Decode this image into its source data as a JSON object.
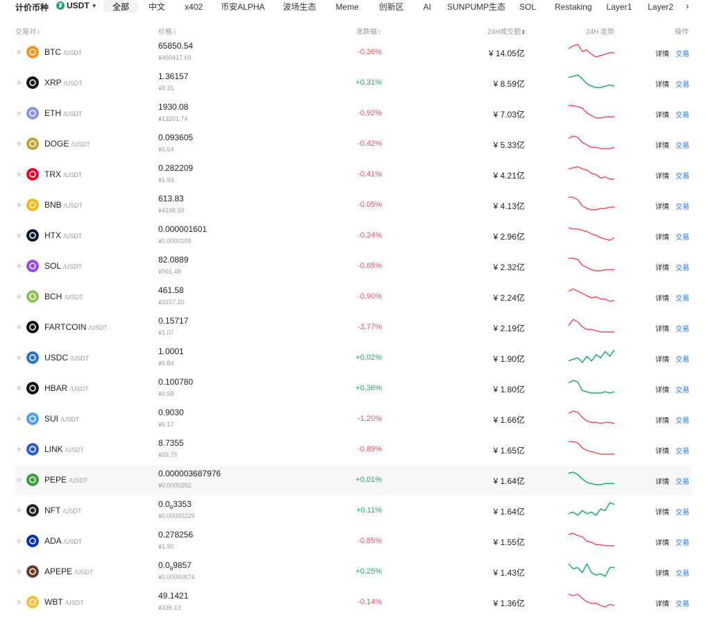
{
  "topbar": {
    "pricing_label": "计价币种",
    "currency": "USDT",
    "tabs": [
      "全部",
      "中文",
      "x402",
      "币安ALPHA",
      "波场生态",
      "Meme",
      "创新区",
      "AI",
      "SUNPUMP生态",
      "SOL",
      "Restaking",
      "Layer1",
      "Layer2"
    ],
    "active_tab": 0
  },
  "columns": {
    "pair": "交易对",
    "price": "价格",
    "change": "涨跌幅",
    "volume": "24H成交额",
    "trend": "24H 走势",
    "action": "操作"
  },
  "actions": {
    "detail": "详情",
    "trade": "交易"
  },
  "colors": {
    "up": "#1aaa6e",
    "down": "#ef5061",
    "link": "#2f74e8"
  },
  "rows": [
    {
      "symbol": "BTC",
      "quote": "/USDT",
      "price": "65850.54",
      "cny": "¥450417.69",
      "change": "-0.36%",
      "direction": "down",
      "volume": "¥ 14.05亿",
      "icon": "btc-icon",
      "icon_color": "#f7931a",
      "spark": [
        6,
        4,
        3,
        8,
        7,
        10,
        12,
        11,
        10,
        9,
        9
      ]
    },
    {
      "symbol": "XRP",
      "quote": "/USDT",
      "price": "1.36157",
      "cny": "¥9.31",
      "change": "+0.31%",
      "direction": "up",
      "volume": "¥ 8.59亿",
      "icon": "xrp-icon",
      "icon_color": "#111111",
      "spark": [
        4,
        3,
        2,
        5,
        9,
        11,
        12,
        12,
        11,
        10,
        11
      ]
    },
    {
      "symbol": "ETH",
      "quote": "/USDT",
      "price": "1930.08",
      "cny": "¥13201.74",
      "change": "-0.92%",
      "direction": "down",
      "volume": "¥ 7.03亿",
      "icon": "eth-icon",
      "icon_color": "#8a92f0",
      "spark": [
        3,
        3,
        4,
        5,
        9,
        11,
        13,
        13,
        12,
        12,
        12
      ]
    },
    {
      "symbol": "DOGE",
      "quote": "/USDT",
      "price": "0.093605",
      "cny": "¥0.64",
      "change": "-0.42%",
      "direction": "down",
      "volume": "¥ 5.33亿",
      "icon": "doge-icon",
      "icon_color": "#c2a633",
      "spark": [
        5,
        3,
        4,
        8,
        10,
        12,
        12,
        13,
        13,
        13,
        12
      ]
    },
    {
      "symbol": "TRX",
      "quote": "/USDT",
      "price": "0.282209",
      "cny": "¥1.93",
      "change": "-0.41%",
      "direction": "down",
      "volume": "¥ 4.21亿",
      "icon": "trx-icon",
      "icon_color": "#eb0029",
      "spark": [
        5,
        4,
        3,
        5,
        6,
        9,
        10,
        13,
        12,
        14,
        14
      ]
    },
    {
      "symbol": "BNB",
      "quote": "/USDT",
      "price": "613.83",
      "cny": "¥4198.59",
      "change": "-0.05%",
      "direction": "down",
      "volume": "¥ 4.13亿",
      "icon": "bnb-icon",
      "icon_color": "#f0b90b",
      "spark": [
        3,
        3,
        5,
        10,
        12,
        13,
        13,
        12,
        12,
        11,
        11
      ]
    },
    {
      "symbol": "HTX",
      "quote": "/USDT",
      "price": "0.000001601",
      "cny": "¥0.0000109",
      "change": "-0.24%",
      "direction": "down",
      "volume": "¥ 2.96亿",
      "icon": "htx-icon",
      "icon_color": "#0b1a2b",
      "spark": [
        4,
        5,
        5,
        6,
        7,
        9,
        10,
        12,
        13,
        14,
        12
      ]
    },
    {
      "symbol": "SOL",
      "quote": "/USDT",
      "price": "82.0889",
      "cny": "¥561.48",
      "change": "-0.65%",
      "direction": "down",
      "volume": "¥ 2.32亿",
      "icon": "sol-icon",
      "icon_color": "#9945ff",
      "spark": [
        2,
        2,
        3,
        8,
        10,
        12,
        13,
        13,
        12,
        12,
        12
      ]
    },
    {
      "symbol": "BCH",
      "quote": "/USDT",
      "price": "461.58",
      "cny": "¥3157.20",
      "change": "-0.90%",
      "direction": "down",
      "volume": "¥ 2.24亿",
      "icon": "bch-icon",
      "icon_color": "#8dc351",
      "spark": [
        5,
        3,
        5,
        7,
        9,
        11,
        10,
        12,
        12,
        14,
        13
      ]
    },
    {
      "symbol": "FARTCOIN",
      "quote": "/USDT",
      "price": "0.15717",
      "cny": "¥1.07",
      "change": "-3.77%",
      "direction": "down",
      "volume": "¥ 2.19亿",
      "icon": "fartcoin-icon",
      "icon_color": "#111111",
      "spark": [
        8,
        3,
        5,
        9,
        11,
        11,
        12,
        13,
        13,
        13,
        13
      ]
    },
    {
      "symbol": "USDC",
      "quote": "/USDT",
      "price": "1.0001",
      "cny": "¥6.84",
      "change": "+0.02%",
      "direction": "up",
      "volume": "¥ 1.90亿",
      "icon": "usdc-icon",
      "icon_color": "#2775ca",
      "spark": [
        10,
        9,
        8,
        11,
        7,
        10,
        6,
        8,
        4,
        7,
        3
      ]
    },
    {
      "symbol": "HBAR",
      "quote": "/USDT",
      "price": "0.100780",
      "cny": "¥0.68",
      "change": "+0.36%",
      "direction": "up",
      "volume": "¥ 1.80亿",
      "icon": "hbar-icon",
      "icon_color": "#111111",
      "spark": [
        4,
        2,
        3,
        10,
        11,
        12,
        12,
        12,
        11,
        12,
        11
      ]
    },
    {
      "symbol": "SUI",
      "quote": "/USDT",
      "price": "0.9030",
      "cny": "¥6.17",
      "change": "-1.20%",
      "direction": "down",
      "volume": "¥ 1.66亿",
      "icon": "sui-icon",
      "icon_color": "#4da2ff",
      "spark": [
        5,
        3,
        4,
        8,
        11,
        12,
        12,
        13,
        12,
        12,
        13
      ]
    },
    {
      "symbol": "LINK",
      "quote": "/USDT",
      "price": "8.7355",
      "cny": "¥59.75",
      "change": "-0.89%",
      "direction": "down",
      "volume": "¥ 1.65亿",
      "icon": "link-icon",
      "icon_color": "#2a5ada",
      "spark": [
        3,
        3,
        4,
        8,
        10,
        11,
        12,
        13,
        13,
        13,
        13
      ]
    },
    {
      "symbol": "PEPE",
      "quote": "/USDT",
      "price": "0.000003687976",
      "cny": "¥0.0000252",
      "change": "+0.01%",
      "direction": "up",
      "volume": "¥ 1.64亿",
      "icon": "pepe-icon",
      "icon_color": "#3c9d3e",
      "spark": [
        3,
        2,
        4,
        8,
        11,
        12,
        13,
        13,
        12,
        12,
        12
      ]
    },
    {
      "symbol": "NFT",
      "quote": "/USDT",
      "price_main": "0.0",
      "price_sub": "6",
      "price_tail": "3353",
      "cny": "¥0.00000229",
      "change": "+0.11%",
      "direction": "up",
      "volume": "¥ 1.64亿",
      "icon": "nft-icon",
      "icon_color": "#222222",
      "spark": [
        10,
        9,
        11,
        8,
        10,
        9,
        11,
        7,
        8,
        3,
        4
      ]
    },
    {
      "symbol": "ADA",
      "quote": "/USDT",
      "price": "0.278256",
      "cny": "¥1.90",
      "change": "-0.85%",
      "direction": "down",
      "volume": "¥ 1.55亿",
      "icon": "ada-icon",
      "icon_color": "#0033ad",
      "spark": [
        3,
        2,
        4,
        5,
        9,
        10,
        12,
        12,
        13,
        13,
        13
      ]
    },
    {
      "symbol": "APEPE",
      "quote": "/USDT",
      "price_main": "0.0",
      "price_sub": "6",
      "price_tail": "9857",
      "cny": "¥0.00000674",
      "change": "+0.25%",
      "direction": "up",
      "volume": "¥ 1.43亿",
      "icon": "apepe-icon",
      "icon_color": "#6b3a22",
      "spark": [
        3,
        7,
        6,
        10,
        3,
        10,
        12,
        11,
        13,
        6,
        6
      ]
    },
    {
      "symbol": "WBT",
      "quote": "/USDT",
      "price": "49.1421",
      "cny": "¥336.13",
      "change": "-0.14%",
      "direction": "down",
      "volume": "¥ 1.36亿",
      "icon": "wbt-icon",
      "icon_color": "#f2c230",
      "spark": [
        3,
        4,
        3,
        6,
        9,
        10,
        10,
        12,
        13,
        11,
        12
      ]
    }
  ]
}
